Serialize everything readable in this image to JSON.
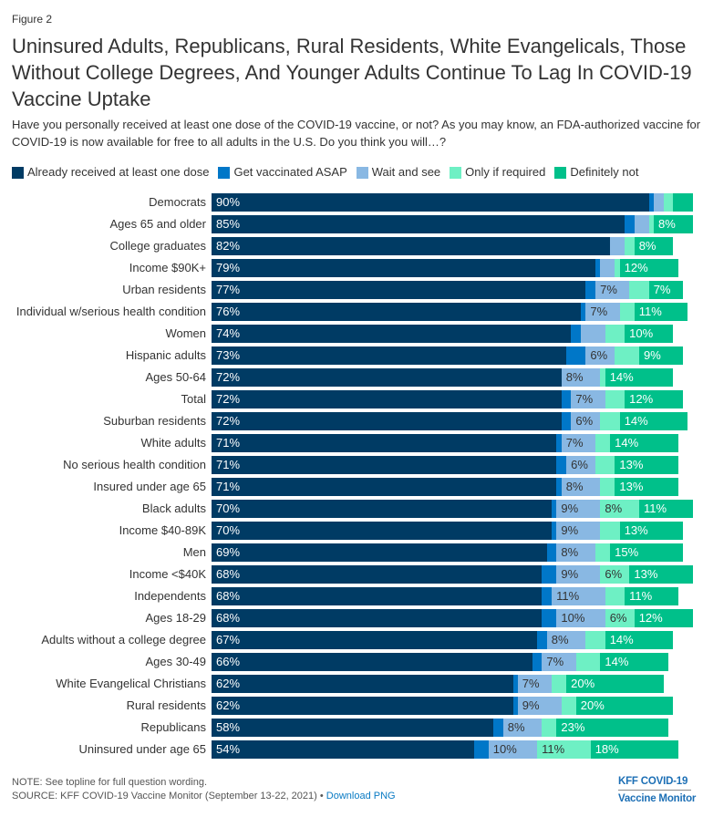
{
  "figure_label": "Figure 2",
  "footer": {
    "note": "NOTE: See topline for full question wording.",
    "source": "SOURCE: KFF COVID-19 Vaccine Monitor (September 13-22, 2021)",
    "separator": "•",
    "download_link": "Download PNG",
    "logo_line1": "KFF COVID-19",
    "logo_line2": "Vaccine Monitor"
  },
  "chart_data": {
    "type": "bar",
    "orientation": "horizontal",
    "stacked": true,
    "title": "Uninsured Adults, Republicans, Rural Residents, White Evangelicals, Those Without College Degrees, And Younger Adults Continue To Lag In COVID-19 Vaccine Uptake",
    "subtitle": "Have you personally received at least one dose of the COVID-19 vaccine, or not? As you may know, an FDA-authorized vaccine for COVID-19 is now available for free to all adults in the U.S. Do you think you will…?",
    "xlabel": "",
    "ylabel": "",
    "xlim": [
      0,
      100
    ],
    "unit": "%",
    "grid": false,
    "legend": "top-left",
    "categories": [
      "Democrats",
      "Ages 65 and older",
      "College graduates",
      "Income $90K+",
      "Urban residents",
      "Individual w/serious health condition",
      "Women",
      "Hispanic adults",
      "Ages 50-64",
      "Total",
      "Suburban residents",
      "White adults",
      "No serious health condition",
      "Insured under age 65",
      "Black adults",
      "Income $40-89K",
      "Men",
      "Income <$40K",
      "Independents",
      "Ages 18-29",
      "Adults without a college degree",
      "Ages 30-49",
      "White Evangelical Christians",
      "Rural residents",
      "Republicans",
      "Uninsured under age 65"
    ],
    "series": [
      {
        "key": "already-received",
        "name": "Already received at least one dose",
        "color": "#003B64",
        "label_color": "#ffffff",
        "values": [
          90,
          85,
          82,
          79,
          77,
          76,
          74,
          73,
          72,
          72,
          72,
          71,
          71,
          71,
          70,
          70,
          69,
          68,
          68,
          68,
          67,
          66,
          62,
          62,
          58,
          54
        ]
      },
      {
        "key": "asap",
        "name": "Get vaccinated ASAP",
        "color": "#0077C8",
        "label_color": "#ffffff",
        "values": [
          1,
          2,
          0,
          1,
          2,
          1,
          2,
          4,
          0,
          2,
          2,
          1,
          2,
          1,
          1,
          1,
          2,
          3,
          2,
          3,
          2,
          2,
          1,
          1,
          2,
          3
        ]
      },
      {
        "key": "wait-and-see",
        "name": "Wait and see",
        "color": "#89B8E3",
        "label_color": "#333333",
        "values": [
          2,
          3,
          3,
          3,
          7,
          7,
          5,
          6,
          8,
          7,
          6,
          7,
          6,
          8,
          9,
          9,
          8,
          9,
          11,
          10,
          8,
          7,
          7,
          9,
          8,
          10
        ]
      },
      {
        "key": "only-if-required",
        "name": "Only if required",
        "color": "#6EF0C4",
        "label_color": "#333333",
        "values": [
          2,
          1,
          2,
          1,
          4,
          3,
          4,
          5,
          1,
          4,
          4,
          3,
          4,
          3,
          8,
          4,
          3,
          6,
          4,
          6,
          4,
          5,
          3,
          3,
          3,
          11
        ]
      },
      {
        "key": "definitely-not",
        "name": "Definitely not",
        "color": "#00C08A",
        "label_color": "#ffffff",
        "values": [
          4,
          8,
          8,
          12,
          7,
          11,
          10,
          9,
          14,
          12,
          14,
          14,
          13,
          13,
          11,
          13,
          15,
          13,
          11,
          12,
          14,
          14,
          20,
          20,
          23,
          18
        ]
      }
    ]
  }
}
